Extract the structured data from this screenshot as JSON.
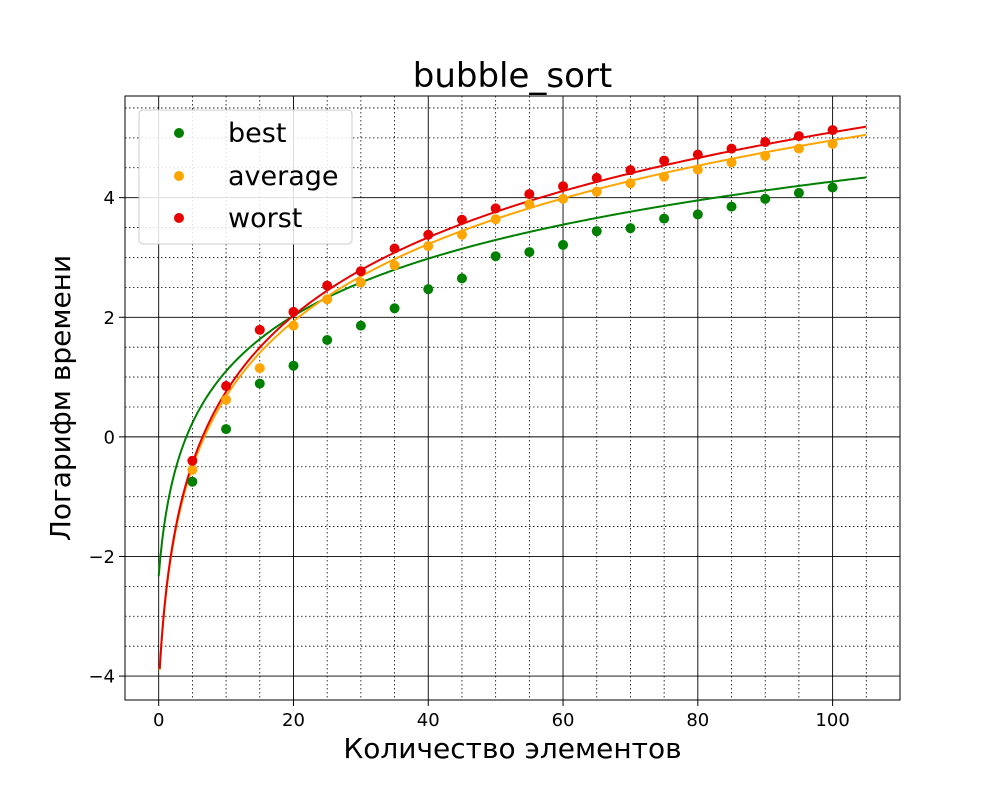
{
  "chart_data": {
    "type": "scatter",
    "title": "bubble_sort",
    "xlabel": "Количество элементов",
    "ylabel": "Логарифм времени",
    "xlim": [
      -5,
      110
    ],
    "ylim": [
      -4.4,
      5.7
    ],
    "xticks": [
      0,
      20,
      40,
      60,
      80,
      100
    ],
    "yticks": [
      -4,
      -2,
      0,
      2,
      4
    ],
    "xtick_labels": [
      "0",
      "20",
      "40",
      "60",
      "80",
      "100"
    ],
    "ytick_labels": [
      "−4",
      "−2",
      "0",
      "2",
      "4"
    ],
    "grid": true,
    "minor_grid": true,
    "legend_position": "upper-left",
    "x": [
      5,
      10,
      15,
      20,
      25,
      30,
      35,
      40,
      45,
      50,
      55,
      60,
      65,
      70,
      75,
      80,
      85,
      90,
      95,
      100
    ],
    "series": [
      {
        "name": "best",
        "color": "#008000",
        "values": [
          -0.75,
          0.13,
          0.89,
          1.19,
          1.62,
          1.86,
          2.15,
          2.47,
          2.65,
          3.02,
          3.09,
          3.21,
          3.44,
          3.49,
          3.65,
          3.72,
          3.85,
          3.98,
          4.08,
          4.17
        ],
        "fit": {
          "a": 0.2266,
          "b": 2.104,
          "xmin": 0,
          "xmax": 105
        }
      },
      {
        "name": "average",
        "color": "#ffa500",
        "values": [
          -0.55,
          0.62,
          1.15,
          1.86,
          2.3,
          2.58,
          2.87,
          3.19,
          3.38,
          3.64,
          3.89,
          3.98,
          4.1,
          4.24,
          4.35,
          4.47,
          4.59,
          4.7,
          4.82,
          4.9
        ],
        "fit": {
          "a": -3.9,
          "b": 1.92,
          "xmin": 0.15,
          "xmax": 105
        }
      },
      {
        "name": "worst",
        "color": "#e60000",
        "values": [
          -0.4,
          0.85,
          1.79,
          2.09,
          2.53,
          2.77,
          3.15,
          3.38,
          3.63,
          3.82,
          4.06,
          4.19,
          4.33,
          4.46,
          4.62,
          4.72,
          4.82,
          4.93,
          5.03,
          5.13
        ],
        "fit": {
          "a": -3.88,
          "b": 1.945,
          "xmin": 0.15,
          "xmax": 105
        }
      }
    ]
  }
}
